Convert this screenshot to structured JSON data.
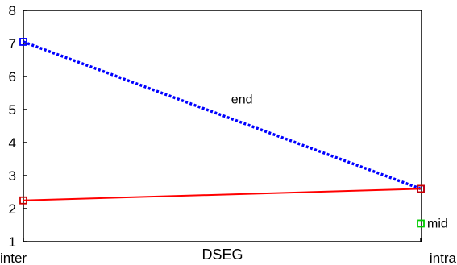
{
  "chart_data": {
    "type": "line",
    "title": "",
    "xlabel": "DSEG",
    "ylabel": "",
    "categories": [
      "inter",
      "intra"
    ],
    "ylim": [
      1,
      8
    ],
    "yticks": [
      "1",
      "2",
      "3",
      "4",
      "5",
      "6",
      "7",
      "8"
    ],
    "grid": false,
    "series": [
      {
        "name": "end",
        "values": [
          7.05,
          2.6
        ],
        "color": "#0000ff",
        "marker_color": "#0000ff",
        "line": "dotted"
      },
      {
        "name": "",
        "values": [
          2.25,
          2.6
        ],
        "color": "#ff0000",
        "marker_color": "#cc0000",
        "line": "solid"
      },
      {
        "name": "mid",
        "values": [
          null,
          1.55
        ],
        "color": "#00cc00",
        "marker_color": "#00cc00",
        "line": "none"
      }
    ]
  }
}
